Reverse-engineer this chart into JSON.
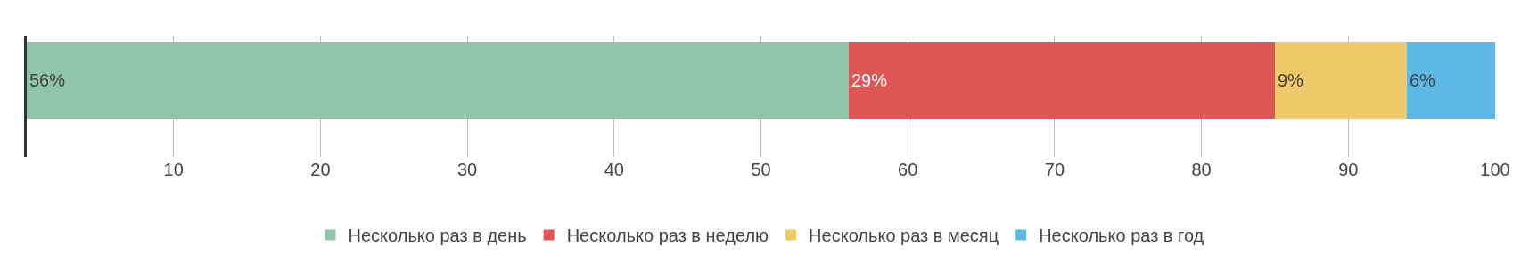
{
  "chart_data": {
    "type": "bar",
    "orientation": "horizontal",
    "stacked": true,
    "categories": [
      null
    ],
    "series": [
      {
        "name": "Несколько раз в день",
        "color": "#8fc4a8",
        "values": [
          56
        ],
        "value_labels": [
          "56%"
        ]
      },
      {
        "name": "Несколько раз в неделю",
        "color": "#de5555",
        "values": [
          29
        ],
        "value_labels": [
          "29%"
        ]
      },
      {
        "name": "Несколько раз в месяц",
        "color": "#f0ca6a",
        "values": [
          9
        ],
        "value_labels": [
          "9%"
        ]
      },
      {
        "name": "Несколько раз в год",
        "color": "#5db8e6",
        "values": [
          6
        ],
        "value_labels": [
          "6%"
        ]
      }
    ],
    "xlim": [
      0,
      100
    ],
    "xticks": [
      10,
      20,
      30,
      40,
      50,
      60,
      70,
      80,
      90,
      100
    ],
    "grid": "x",
    "legend": "bottom"
  }
}
